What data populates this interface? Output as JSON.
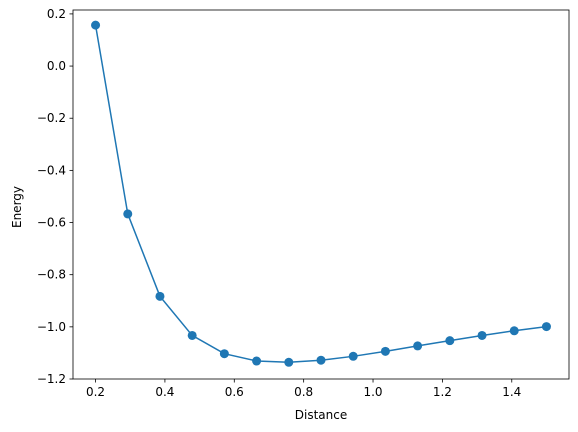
{
  "chart_data": {
    "type": "line",
    "title": "",
    "xlabel": "Distance",
    "ylabel": "Energy",
    "xlim": [
      0.135,
      1.565
    ],
    "ylim": [
      -1.2,
      0.215
    ],
    "xticks": [
      0.2,
      0.4,
      0.6,
      0.8,
      1.0,
      1.2,
      1.4
    ],
    "xtick_labels": [
      "0.2",
      "0.4",
      "0.6",
      "0.8",
      "1.0",
      "1.2",
      "1.4"
    ],
    "yticks": [
      0.2,
      0.0,
      -0.2,
      -0.4,
      -0.6,
      -0.8,
      -1.0,
      -1.2
    ],
    "ytick_labels": [
      "0.2",
      "0.0",
      "−0.2",
      "−0.4",
      "−0.6",
      "−0.8",
      "−1.0",
      "−1.2"
    ],
    "grid": false,
    "marker": "circle",
    "color": "#1f77b4",
    "series": [
      {
        "x": [
          0.2,
          0.2929,
          0.3857,
          0.4786,
          0.5714,
          0.6643,
          0.7571,
          0.85,
          0.9429,
          1.0357,
          1.1286,
          1.2214,
          1.3143,
          1.4071,
          1.5
        ],
        "y": [
          0.157,
          -0.567,
          -0.883,
          -1.033,
          -1.103,
          -1.131,
          -1.136,
          -1.128,
          -1.113,
          -1.094,
          -1.073,
          -1.053,
          -1.033,
          -1.015,
          -0.999
        ]
      }
    ]
  }
}
